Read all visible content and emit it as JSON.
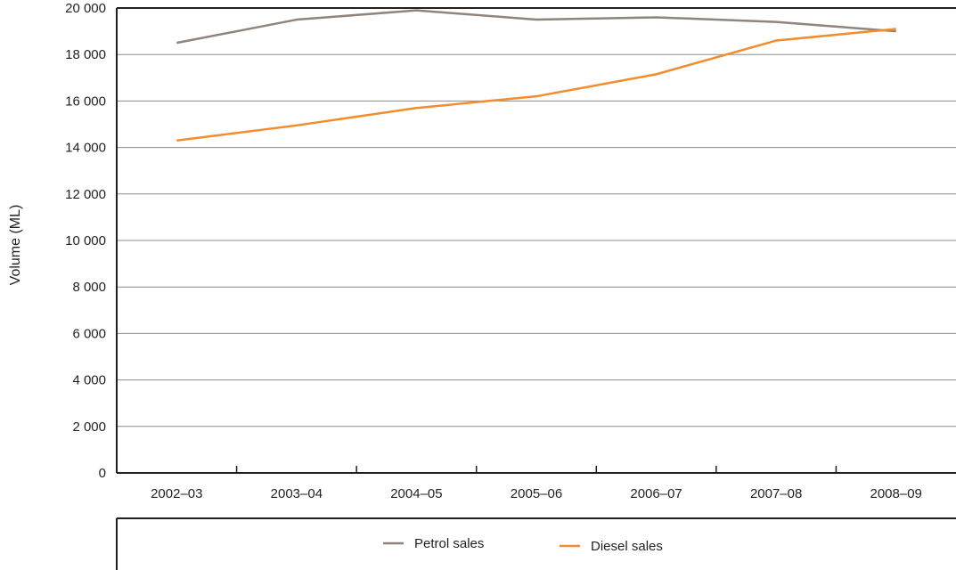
{
  "chart_data": {
    "type": "line",
    "title": "",
    "xlabel": "",
    "ylabel": "Volume (ML)",
    "categories": [
      "2002–03",
      "2003–04",
      "2004–05",
      "2005–06",
      "2006–07",
      "2007–08",
      "2008–09"
    ],
    "y_ticks": [
      "0",
      "2 000",
      "4 000",
      "6 000",
      "8 000",
      "10 000",
      "12 000",
      "14 000",
      "16 000",
      "18 000",
      "20 000"
    ],
    "ylim": [
      0,
      20000
    ],
    "grid": "horizontal",
    "legend_position": "bottom",
    "series": [
      {
        "name": "Petrol sales",
        "color": "#8f857d",
        "values": [
          18500,
          19500,
          19900,
          19500,
          19600,
          19400,
          19000
        ]
      },
      {
        "name": "Diesel sales",
        "color": "#f28c2e",
        "values": [
          14300,
          14950,
          15700,
          16200,
          17150,
          18600,
          19100
        ]
      }
    ]
  }
}
